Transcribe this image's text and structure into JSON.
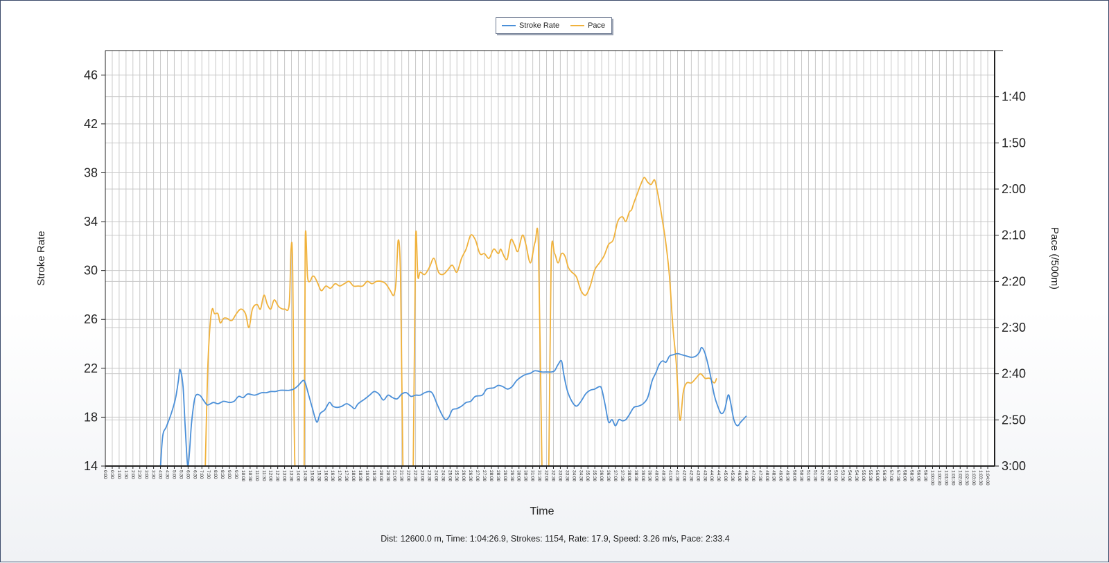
{
  "summary": "Dist: 12600.0 m, Time: 1:04:26.9, Strokes: 1154, Rate: 17.9, Speed: 3.26 m/s, Pace: 2:33.4",
  "colors": {
    "stroke_rate": "#4a8fd8",
    "pace": "#f0b23c",
    "grid": "#c8c8c8",
    "axis": "#222222"
  },
  "chart_data": {
    "type": "line",
    "xlabel": "Time",
    "ylabel": "Stroke Rate",
    "y2label": "Pace (/500m)",
    "grid": true,
    "legend_position": "top-center",
    "x_unit": "seconds",
    "xlim": [
      0,
      3870
    ],
    "ylim": [
      14,
      48
    ],
    "y_ticks": [
      14,
      18,
      22,
      26,
      30,
      34,
      38,
      42,
      46
    ],
    "y2lim_seconds": [
      180,
      90
    ],
    "y2_tick_values": [
      100,
      110,
      120,
      130,
      140,
      150,
      160,
      170,
      180
    ],
    "y2_tick_labels": [
      "1:40",
      "1:50",
      "2:00",
      "2:10",
      "2:20",
      "2:30",
      "2:40",
      "2:50",
      "3:00"
    ],
    "x_tick_labels": [
      "0:00",
      "0:30",
      "1:00",
      "1:30",
      "2:00",
      "2:30",
      "3:00",
      "3:30",
      "4:00",
      "4:30",
      "5:00",
      "5:30",
      "6:00",
      "6:30",
      "7:00",
      "7:30",
      "8:00",
      "8:30",
      "9:00",
      "9:30",
      "10:00",
      "10:30",
      "11:00",
      "11:30",
      "12:00",
      "12:30",
      "13:00",
      "13:30",
      "14:00",
      "14:30",
      "15:00",
      "15:30",
      "16:00",
      "16:30",
      "17:00",
      "17:30",
      "18:00",
      "18:30",
      "19:00",
      "19:30",
      "20:00",
      "20:30",
      "21:00",
      "21:30",
      "22:00",
      "22:30",
      "23:00",
      "23:30",
      "24:00",
      "24:30",
      "25:00",
      "25:30",
      "26:00",
      "26:30",
      "27:00",
      "27:30",
      "28:00",
      "28:30",
      "29:00",
      "29:30",
      "30:00",
      "30:30",
      "31:00",
      "31:30",
      "32:00",
      "32:30",
      "33:00",
      "33:30",
      "34:00",
      "34:30",
      "35:00",
      "35:30",
      "36:00",
      "36:30",
      "37:00",
      "37:30",
      "38:00",
      "38:30",
      "39:00",
      "39:30",
      "40:00",
      "40:30",
      "41:00",
      "41:30",
      "42:00",
      "42:30",
      "43:00",
      "43:30",
      "44:00",
      "44:30",
      "45:00",
      "45:30",
      "46:00",
      "46:30",
      "47:00",
      "47:30",
      "48:00",
      "48:30",
      "49:00",
      "49:30",
      "50:00",
      "50:30",
      "51:00",
      "51:30",
      "52:00",
      "52:30",
      "53:00",
      "53:30",
      "54:00",
      "54:30",
      "55:00",
      "55:30",
      "56:00",
      "56:30",
      "57:00",
      "57:30",
      "58:00",
      "58:30",
      "59:00",
      "59:30",
      "1:00:00",
      "1:00:30",
      "1:01:00",
      "1:01:30",
      "1:02:00",
      "1:02:30",
      "1:03:00",
      "1:03:30",
      "1:04:00"
    ],
    "series": [
      {
        "name": "Stroke Rate",
        "axis": "left",
        "points": [
          [
            240,
            14
          ],
          [
            250,
            16.5
          ],
          [
            265,
            17.2
          ],
          [
            285,
            18.2
          ],
          [
            305,
            19.5
          ],
          [
            318,
            21
          ],
          [
            325,
            21.9
          ],
          [
            338,
            20.5
          ],
          [
            348,
            17
          ],
          [
            360,
            14
          ],
          [
            375,
            17.5
          ],
          [
            390,
            19.6
          ],
          [
            410,
            19.8
          ],
          [
            430,
            19.3
          ],
          [
            445,
            19
          ],
          [
            470,
            19.2
          ],
          [
            490,
            19.1
          ],
          [
            515,
            19.3
          ],
          [
            540,
            19.2
          ],
          [
            560,
            19.3
          ],
          [
            580,
            19.7
          ],
          [
            600,
            19.6
          ],
          [
            620,
            19.9
          ],
          [
            650,
            19.8
          ],
          [
            680,
            20
          ],
          [
            700,
            20
          ],
          [
            720,
            20.1
          ],
          [
            740,
            20.1
          ],
          [
            760,
            20.2
          ],
          [
            780,
            20.2
          ],
          [
            800,
            20.2
          ],
          [
            820,
            20.3
          ],
          [
            840,
            20.6
          ],
          [
            860,
            21
          ],
          [
            870,
            20.8
          ],
          [
            885,
            19.8
          ],
          [
            900,
            18.8
          ],
          [
            920,
            17.6
          ],
          [
            935,
            18.3
          ],
          [
            955,
            18.6
          ],
          [
            975,
            19.2
          ],
          [
            990,
            18.9
          ],
          [
            1010,
            18.8
          ],
          [
            1030,
            18.9
          ],
          [
            1050,
            19.1
          ],
          [
            1070,
            18.9
          ],
          [
            1085,
            18.7
          ],
          [
            1100,
            19.1
          ],
          [
            1130,
            19.5
          ],
          [
            1150,
            19.8
          ],
          [
            1170,
            20.1
          ],
          [
            1190,
            19.9
          ],
          [
            1210,
            19.4
          ],
          [
            1230,
            19.8
          ],
          [
            1250,
            19.6
          ],
          [
            1270,
            19.5
          ],
          [
            1290,
            19.9
          ],
          [
            1310,
            20
          ],
          [
            1330,
            19.7
          ],
          [
            1350,
            19.8
          ],
          [
            1370,
            19.8
          ],
          [
            1390,
            20
          ],
          [
            1410,
            20.1
          ],
          [
            1425,
            19.9
          ],
          [
            1445,
            19
          ],
          [
            1465,
            18.2
          ],
          [
            1480,
            17.8
          ],
          [
            1495,
            18
          ],
          [
            1510,
            18.6
          ],
          [
            1530,
            18.7
          ],
          [
            1550,
            18.9
          ],
          [
            1570,
            19.2
          ],
          [
            1590,
            19.3
          ],
          [
            1610,
            19.7
          ],
          [
            1640,
            19.8
          ],
          [
            1660,
            20.3
          ],
          [
            1690,
            20.4
          ],
          [
            1710,
            20.6
          ],
          [
            1730,
            20.5
          ],
          [
            1750,
            20.3
          ],
          [
            1770,
            20.5
          ],
          [
            1790,
            21
          ],
          [
            1810,
            21.3
          ],
          [
            1830,
            21.5
          ],
          [
            1850,
            21.6
          ],
          [
            1870,
            21.8
          ],
          [
            1900,
            21.7
          ],
          [
            1920,
            21.7
          ],
          [
            1940,
            21.7
          ],
          [
            1955,
            21.8
          ],
          [
            1970,
            22.3
          ],
          [
            1985,
            22.6
          ],
          [
            1995,
            21.5
          ],
          [
            2010,
            20.2
          ],
          [
            2030,
            19.3
          ],
          [
            2050,
            18.9
          ],
          [
            2070,
            19.3
          ],
          [
            2090,
            19.9
          ],
          [
            2110,
            20.2
          ],
          [
            2130,
            20.3
          ],
          [
            2150,
            20.5
          ],
          [
            2160,
            20.3
          ],
          [
            2175,
            19
          ],
          [
            2190,
            17.6
          ],
          [
            2205,
            17.8
          ],
          [
            2220,
            17.3
          ],
          [
            2235,
            17.8
          ],
          [
            2250,
            17.7
          ],
          [
            2265,
            17.8
          ],
          [
            2280,
            18.2
          ],
          [
            2300,
            18.8
          ],
          [
            2320,
            18.9
          ],
          [
            2340,
            19.1
          ],
          [
            2360,
            19.6
          ],
          [
            2380,
            21.0
          ],
          [
            2395,
            21.6
          ],
          [
            2410,
            22.3
          ],
          [
            2425,
            22.6
          ],
          [
            2440,
            22.5
          ],
          [
            2455,
            23.0
          ],
          [
            2470,
            23.1
          ],
          [
            2490,
            23.2
          ],
          [
            2510,
            23.1
          ],
          [
            2530,
            23.0
          ],
          [
            2550,
            22.9
          ],
          [
            2570,
            23.0
          ],
          [
            2585,
            23.3
          ],
          [
            2595,
            23.7
          ],
          [
            2610,
            23.2
          ],
          [
            2630,
            21.7
          ],
          [
            2650,
            19.8
          ],
          [
            2665,
            18.9
          ],
          [
            2680,
            18.3
          ],
          [
            2695,
            18.6
          ],
          [
            2710,
            19.8
          ],
          [
            2720,
            19.3
          ],
          [
            2735,
            17.8
          ],
          [
            2750,
            17.3
          ],
          [
            2765,
            17.6
          ],
          [
            2780,
            17.9
          ],
          [
            2790,
            18.1
          ]
        ]
      },
      {
        "name": "Pace",
        "axis": "right",
        "points": [
          [
            435,
            180
          ],
          [
            445,
            160
          ],
          [
            455,
            150
          ],
          [
            465,
            146
          ],
          [
            475,
            147
          ],
          [
            490,
            147
          ],
          [
            500,
            149
          ],
          [
            515,
            148
          ],
          [
            530,
            148
          ],
          [
            550,
            148.5
          ],
          [
            570,
            147
          ],
          [
            590,
            146
          ],
          [
            610,
            147
          ],
          [
            625,
            150
          ],
          [
            640,
            146
          ],
          [
            660,
            145
          ],
          [
            675,
            146
          ],
          [
            690,
            143
          ],
          [
            705,
            145
          ],
          [
            720,
            146
          ],
          [
            735,
            144
          ],
          [
            755,
            145.5
          ],
          [
            780,
            146
          ],
          [
            800,
            145
          ],
          [
            808,
            133
          ],
          [
            815,
            137
          ],
          [
            825,
            180
          ],
          [
            845,
            180
          ],
          [
            855,
            180
          ],
          [
            865,
            180
          ],
          [
            870,
            131
          ],
          [
            880,
            139
          ],
          [
            890,
            140
          ],
          [
            900,
            139
          ],
          [
            910,
            139
          ],
          [
            925,
            140.5
          ],
          [
            940,
            142
          ],
          [
            960,
            141
          ],
          [
            980,
            141.5
          ],
          [
            1000,
            140.5
          ],
          [
            1020,
            141
          ],
          [
            1040,
            140.5
          ],
          [
            1060,
            140
          ],
          [
            1080,
            141
          ],
          [
            1100,
            141
          ],
          [
            1120,
            141
          ],
          [
            1140,
            140
          ],
          [
            1160,
            140.5
          ],
          [
            1180,
            140
          ],
          [
            1200,
            140
          ],
          [
            1220,
            140.5
          ],
          [
            1240,
            142
          ],
          [
            1255,
            143
          ],
          [
            1265,
            140
          ],
          [
            1275,
            131
          ],
          [
            1285,
            140
          ],
          [
            1295,
            180
          ],
          [
            1305,
            180
          ],
          [
            1330,
            180
          ],
          [
            1340,
            180
          ],
          [
            1350,
            131
          ],
          [
            1360,
            139
          ],
          [
            1370,
            138
          ],
          [
            1390,
            138.5
          ],
          [
            1410,
            137
          ],
          [
            1430,
            135
          ],
          [
            1450,
            138
          ],
          [
            1470,
            138.5
          ],
          [
            1490,
            137.5
          ],
          [
            1510,
            136.5
          ],
          [
            1530,
            138
          ],
          [
            1550,
            135
          ],
          [
            1570,
            133
          ],
          [
            1590,
            130
          ],
          [
            1610,
            131
          ],
          [
            1630,
            134
          ],
          [
            1650,
            134
          ],
          [
            1670,
            135
          ],
          [
            1690,
            133
          ],
          [
            1710,
            134
          ],
          [
            1720,
            133
          ],
          [
            1730,
            134
          ],
          [
            1740,
            135
          ],
          [
            1750,
            135
          ],
          [
            1765,
            131
          ],
          [
            1780,
            132
          ],
          [
            1795,
            133.5
          ],
          [
            1815,
            130
          ],
          [
            1830,
            132
          ],
          [
            1850,
            136
          ],
          [
            1870,
            131.5
          ],
          [
            1885,
            132.5
          ],
          [
            1900,
            180
          ],
          [
            1910,
            180
          ],
          [
            1920,
            180
          ],
          [
            1930,
            180
          ],
          [
            1940,
            135
          ],
          [
            1955,
            134
          ],
          [
            1970,
            136
          ],
          [
            1985,
            134
          ],
          [
            2000,
            134.5
          ],
          [
            2015,
            137
          ],
          [
            2030,
            138
          ],
          [
            2050,
            139
          ],
          [
            2070,
            142
          ],
          [
            2090,
            143
          ],
          [
            2110,
            141
          ],
          [
            2130,
            137.5
          ],
          [
            2150,
            136
          ],
          [
            2170,
            134.5
          ],
          [
            2190,
            132
          ],
          [
            2210,
            131
          ],
          [
            2230,
            127
          ],
          [
            2250,
            126
          ],
          [
            2265,
            127
          ],
          [
            2280,
            125
          ],
          [
            2290,
            124.5
          ],
          [
            2300,
            123
          ],
          [
            2315,
            121
          ],
          [
            2330,
            119
          ],
          [
            2345,
            117.5
          ],
          [
            2360,
            118.5
          ],
          [
            2375,
            119
          ],
          [
            2390,
            118
          ],
          [
            2400,
            120
          ],
          [
            2410,
            122.5
          ],
          [
            2425,
            127
          ],
          [
            2440,
            132
          ],
          [
            2455,
            139
          ],
          [
            2470,
            150
          ],
          [
            2485,
            158
          ],
          [
            2500,
            170
          ],
          [
            2515,
            164
          ],
          [
            2530,
            162
          ],
          [
            2550,
            162
          ],
          [
            2570,
            161
          ],
          [
            2590,
            160
          ],
          [
            2610,
            161
          ],
          [
            2630,
            161
          ],
          [
            2650,
            162
          ],
          [
            2660,
            161
          ]
        ]
      }
    ]
  }
}
